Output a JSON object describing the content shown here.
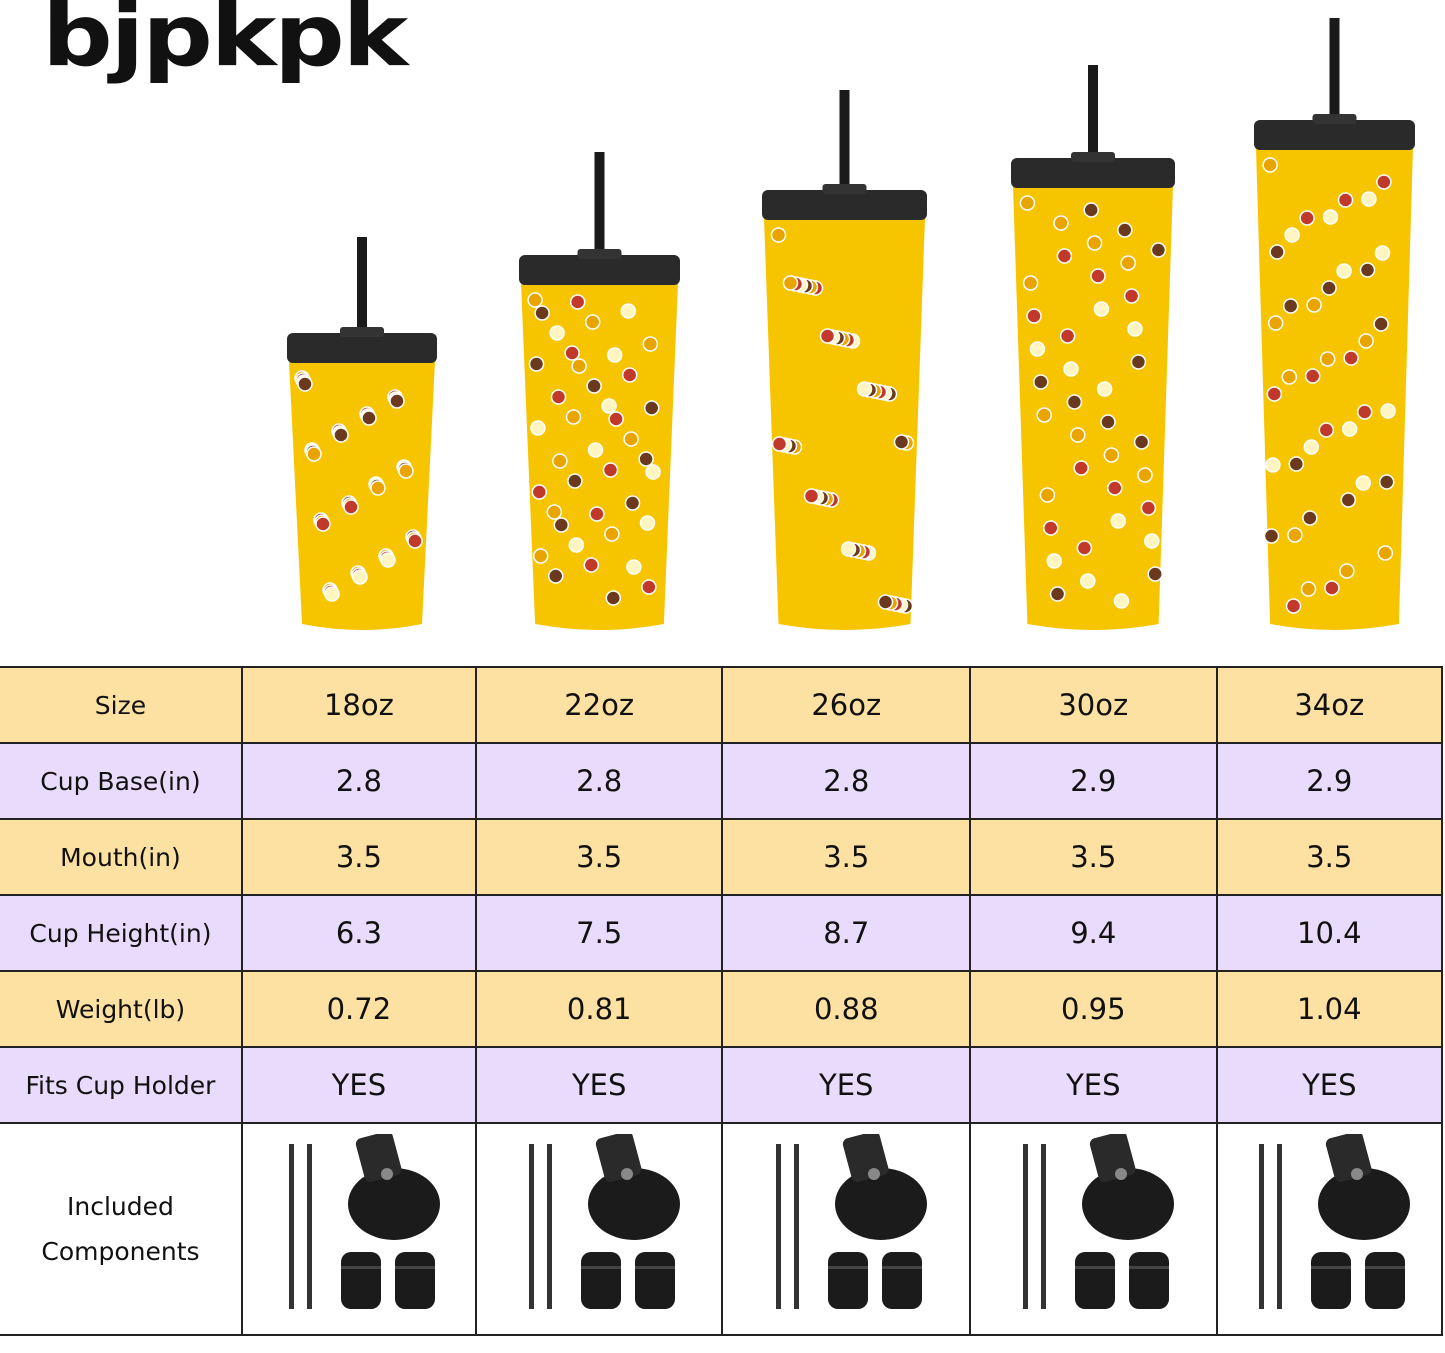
{
  "brand": {
    "logo": "BJPKPK"
  },
  "colors": {
    "header_row": "#fde1a2",
    "alt_row": "#e9dbfc",
    "cup": "#f7c500",
    "lid": "#2a2a2a"
  },
  "products": [
    "18oz",
    "22oz",
    "26oz",
    "30oz",
    "34oz"
  ],
  "table": {
    "rows": [
      {
        "label": "Size",
        "values": [
          "18oz",
          "22oz",
          "26oz",
          "30oz",
          "34oz"
        ]
      },
      {
        "label": "Cup Base(in)",
        "values": [
          "2.8",
          "2.8",
          "2.8",
          "2.9",
          "2.9"
        ]
      },
      {
        "label": "Mouth(in)",
        "values": [
          "3.5",
          "3.5",
          "3.5",
          "3.5",
          "3.5"
        ]
      },
      {
        "label": "Cup Height(in)",
        "values": [
          "6.3",
          "7.5",
          "8.7",
          "9.4",
          "10.4"
        ]
      },
      {
        "label": "Weight(lb)",
        "values": [
          "0.72",
          "0.81",
          "0.88",
          "0.95",
          "1.04"
        ]
      },
      {
        "label": "Fits Cup Holder",
        "values": [
          "YES",
          "YES",
          "YES",
          "YES",
          "YES"
        ]
      }
    ],
    "components_label_line1": "Included",
    "components_label_line2": "Components",
    "components_icons": [
      "straw-icon",
      "straw-icon",
      "flip-lid-icon",
      "straw-plug-icon",
      "straw-plug-icon"
    ]
  }
}
